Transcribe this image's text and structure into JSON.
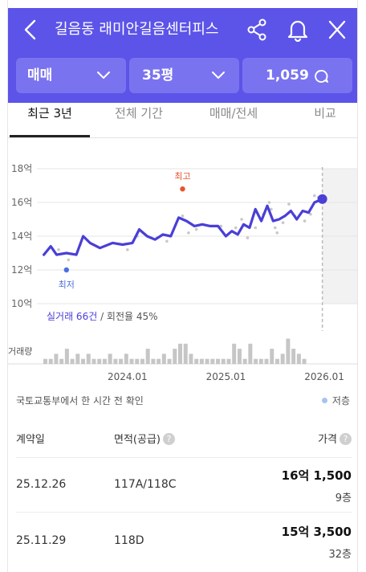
{
  "header": {
    "title": "길음동 래미안길음센터피스",
    "icons": [
      "back-icon",
      "share-icon",
      "bell-icon",
      "close-icon"
    ],
    "color": "#5c54e8"
  },
  "filters": {
    "trade_type": "매매",
    "area": "35평",
    "comment_count": "1,059"
  },
  "tabs": [
    {
      "label": "최근 3년",
      "active": true
    },
    {
      "label": "전체 기간",
      "active": false
    },
    {
      "label": "매매/전세",
      "active": false
    },
    {
      "label": "비교",
      "active": false
    }
  ],
  "chart_data": {
    "type": "line",
    "y_ticks": [
      "18억",
      "16억",
      "14억",
      "12억",
      "10억"
    ],
    "ylim": [
      10,
      18
    ],
    "x_ticks": [
      "2024.01",
      "2025.01",
      "2026.01"
    ],
    "x_tick_values": [
      2024.0,
      2025.0,
      2026.0
    ],
    "xlim": [
      2023.08,
      2026.35
    ],
    "series": [
      {
        "color": "#4a3fd6",
        "x": [
          2023.15,
          2023.22,
          2023.28,
          2023.38,
          2023.48,
          2023.55,
          2023.62,
          2023.72,
          2023.85,
          2023.95,
          2024.05,
          2024.12,
          2024.2,
          2024.28,
          2024.36,
          2024.44,
          2024.52,
          2024.6,
          2024.68,
          2024.76,
          2024.84,
          2024.92,
          2025.0,
          2025.06,
          2025.12,
          2025.18,
          2025.24,
          2025.3,
          2025.36,
          2025.42,
          2025.48,
          2025.54,
          2025.6,
          2025.66,
          2025.72,
          2025.78,
          2025.84,
          2025.9,
          2025.98
        ],
        "values": [
          12.9,
          13.4,
          12.9,
          13.0,
          12.9,
          14.0,
          13.6,
          13.3,
          13.6,
          13.5,
          13.6,
          14.4,
          14.0,
          13.8,
          14.1,
          14.0,
          15.1,
          14.9,
          14.6,
          14.7,
          14.6,
          14.6,
          14.0,
          14.3,
          14.1,
          14.7,
          14.5,
          15.6,
          14.9,
          15.8,
          14.9,
          15.0,
          15.2,
          15.5,
          15.0,
          15.5,
          15.4,
          16.0,
          16.2
        ]
      }
    ],
    "scatter": {
      "color": "#c8c8c8",
      "points": [
        [
          2023.3,
          13.2
        ],
        [
          2023.4,
          12.6
        ],
        [
          2023.52,
          13.5
        ],
        [
          2024.0,
          13.2
        ],
        [
          2024.1,
          14.0
        ],
        [
          2024.3,
          13.9
        ],
        [
          2024.4,
          13.7
        ],
        [
          2024.56,
          15.2
        ],
        [
          2024.62,
          14.2
        ],
        [
          2024.7,
          14.4
        ],
        [
          2024.95,
          14.6
        ],
        [
          2025.1,
          14.5
        ],
        [
          2025.16,
          15.0
        ],
        [
          2025.22,
          13.9
        ],
        [
          2025.3,
          14.5
        ],
        [
          2025.38,
          15.3
        ],
        [
          2025.44,
          16.0
        ],
        [
          2025.46,
          15.6
        ],
        [
          2025.5,
          14.5
        ],
        [
          2025.52,
          14.2
        ],
        [
          2025.58,
          14.8
        ],
        [
          2025.64,
          15.9
        ],
        [
          2025.7,
          15.2
        ],
        [
          2025.8,
          14.9
        ],
        [
          2025.86,
          15.3
        ],
        [
          2025.9,
          16.4
        ],
        [
          2025.94,
          16.3
        ]
      ]
    },
    "high": {
      "label": "최고",
      "x": 2024.56,
      "y": 16.8,
      "color": "#e8532c"
    },
    "low": {
      "label": "최저",
      "x": 2023.38,
      "y": 12.0,
      "color": "#4a6fe0"
    },
    "last_point": {
      "x": 2025.98,
      "y": 16.2
    },
    "summary_count": "실거래 66건",
    "summary_rate": "/ 회전율 45%",
    "volume_label": "거래량",
    "volume": [
      1,
      1,
      2,
      1,
      3,
      1,
      2,
      1,
      2,
      1,
      1,
      1,
      2,
      1,
      1,
      2,
      1,
      1,
      1,
      3,
      1,
      1,
      2,
      1,
      3,
      4,
      4,
      2,
      1,
      1,
      1,
      1,
      1,
      1,
      1,
      4,
      3,
      1,
      4,
      1,
      1,
      1,
      3,
      1,
      2,
      5,
      3,
      2,
      1
    ]
  },
  "source_note": "국토교통부에서 한 시간 전 확인",
  "legend": {
    "low_floor": "저층",
    "low_floor_color": "#a9c3f0"
  },
  "table": {
    "headers": {
      "date": "계약일",
      "area": "면적(공급)",
      "price": "가격"
    },
    "rows": [
      {
        "date": "25.12.26",
        "area": "117A/118C",
        "price": "16억 1,500",
        "floor": "9층"
      },
      {
        "date": "25.11.29",
        "area": "118D",
        "price": "15억 3,500",
        "floor": "32층"
      }
    ]
  }
}
